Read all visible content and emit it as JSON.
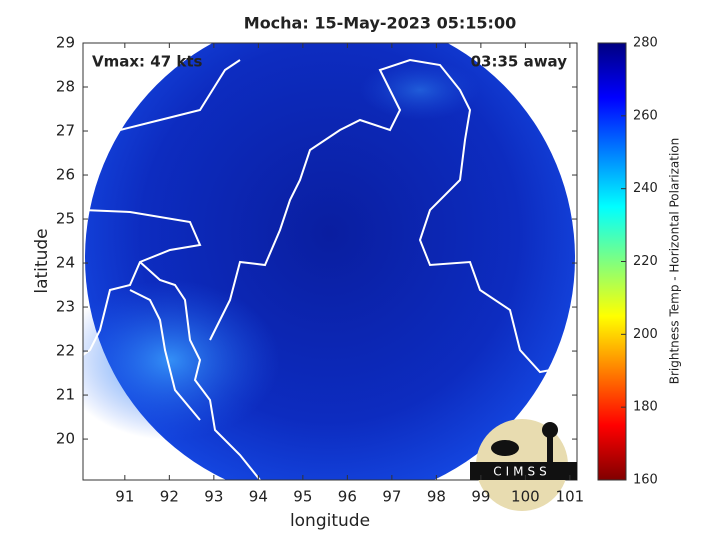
{
  "chart_data": {
    "type": "map",
    "title": "Mocha: 15-May-2023 05:15:00",
    "xlabel": "longitude",
    "ylabel": "latitude",
    "xlim": [
      90.06,
      101.16
    ],
    "ylim": [
      19.07,
      29
    ],
    "xticks": [
      91,
      92,
      93,
      94,
      95,
      96,
      97,
      98,
      99,
      100,
      101
    ],
    "yticks": [
      20,
      21,
      22,
      23,
      24,
      25,
      26,
      27,
      28,
      29
    ],
    "annotations": [
      "Vmax: 47 kts",
      "03:35 away"
    ],
    "colorbar": {
      "label": "Brightness Temp - Horizontal Polarization",
      "lim": [
        160,
        280
      ],
      "ticks": [
        160,
        180,
        200,
        220,
        240,
        260,
        280
      ]
    },
    "logo": "CIMSS"
  }
}
